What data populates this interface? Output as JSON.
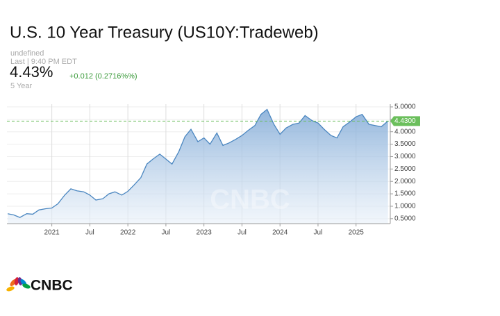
{
  "header": {
    "title": "U.S. 10 Year Treasury (US10Y:Tradeweb)",
    "source": "undefined",
    "last": "Last | 9:40 PM EDT",
    "price": "4.43%",
    "change": "+0.012 (0.2716%%)",
    "range": "5 Year"
  },
  "footer": {
    "logo": "CNBC"
  },
  "chart_data": {
    "type": "area",
    "x": [
      2020.42,
      2020.5,
      2020.58,
      2020.67,
      2020.75,
      2020.83,
      2020.92,
      2021.0,
      2021.08,
      2021.17,
      2021.25,
      2021.33,
      2021.42,
      2021.5,
      2021.58,
      2021.67,
      2021.75,
      2021.83,
      2021.92,
      2022.0,
      2022.08,
      2022.17,
      2022.25,
      2022.33,
      2022.42,
      2022.5,
      2022.58,
      2022.67,
      2022.75,
      2022.83,
      2022.92,
      2023.0,
      2023.08,
      2023.17,
      2023.25,
      2023.33,
      2023.42,
      2023.5,
      2023.58,
      2023.67,
      2023.75,
      2023.83,
      2023.92,
      2024.0,
      2024.08,
      2024.17,
      2024.25,
      2024.33,
      2024.42,
      2024.5,
      2024.58,
      2024.67,
      2024.75,
      2024.83,
      2024.92,
      2025.0,
      2025.08,
      2025.17,
      2025.25,
      2025.33,
      2025.42
    ],
    "series": [
      {
        "name": "US10Y",
        "color": "#4a86c0",
        "values": [
          0.7,
          0.65,
          0.55,
          0.7,
          0.68,
          0.85,
          0.9,
          0.93,
          1.1,
          1.45,
          1.7,
          1.62,
          1.58,
          1.45,
          1.25,
          1.3,
          1.5,
          1.58,
          1.45,
          1.6,
          1.85,
          2.15,
          2.7,
          2.9,
          3.1,
          2.9,
          2.7,
          3.2,
          3.8,
          4.1,
          3.6,
          3.75,
          3.5,
          3.95,
          3.45,
          3.55,
          3.7,
          3.85,
          4.05,
          4.25,
          4.7,
          4.9,
          4.3,
          3.9,
          4.15,
          4.3,
          4.35,
          4.65,
          4.45,
          4.35,
          4.1,
          3.85,
          3.75,
          4.2,
          4.4,
          4.6,
          4.7,
          4.3,
          4.25,
          4.2,
          4.43
        ]
      }
    ],
    "xlim": [
      2020.41,
      2025.45
    ],
    "ylim": [
      0.3,
      5.11
    ],
    "xticks": [
      2021,
      {
        "value": 2021.5,
        "label": "Jul"
      },
      2022,
      {
        "value": 2022.5,
        "label": "Jul"
      },
      2023,
      {
        "value": 2023.5,
        "label": "Jul"
      },
      2024,
      {
        "value": 2024.5,
        "label": "Jul"
      },
      2025
    ],
    "yticks": [
      {
        "value": 0.5,
        "label": "0.5000"
      },
      {
        "value": 1,
        "label": "1.0000"
      },
      {
        "value": 1.5,
        "label": "1.5000"
      },
      {
        "value": 2,
        "label": "2.0000"
      },
      {
        "value": 2.5,
        "label": "2.5000"
      },
      {
        "value": 3,
        "label": "3.0000"
      },
      {
        "value": 3.5,
        "label": "3.5000"
      },
      {
        "value": 4,
        "label": "4.0000"
      },
      {
        "value": 4.5,
        "label": "4.5000"
      },
      {
        "value": 5,
        "label": "5.0000"
      }
    ],
    "reference_line": {
      "value": 4.43,
      "label": "4.4300",
      "color": "#6bbf5c"
    },
    "grid": true
  }
}
